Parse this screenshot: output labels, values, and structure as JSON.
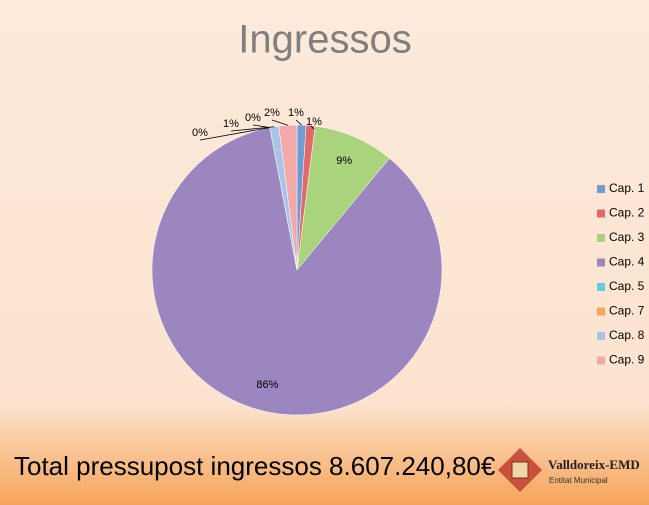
{
  "chart_data": {
    "type": "pie",
    "title": "Ingressos",
    "categories": [
      "Cap. 1",
      "Cap. 2",
      "Cap. 3",
      "Cap. 4",
      "Cap. 5",
      "Cap. 7",
      "Cap. 8",
      "Cap. 9"
    ],
    "values": [
      1,
      1,
      9,
      86,
      0,
      0,
      1,
      2
    ],
    "value_labels": [
      "1%",
      "1%",
      "9%",
      "86%",
      "0%",
      "0%",
      "1%",
      "2%"
    ],
    "colors": [
      "#6f9bd2",
      "#e06a6a",
      "#a9d47c",
      "#9b86c0",
      "#5fcde6",
      "#f7a55f",
      "#a9c4ea",
      "#f2a9a9"
    ],
    "legend": "right"
  },
  "footer": {
    "total": "Total pressupost ingressos 8.607.240,80€",
    "logo_title": "Valldoreix-EMD",
    "logo_subtitle": "Entitat Municipal"
  }
}
